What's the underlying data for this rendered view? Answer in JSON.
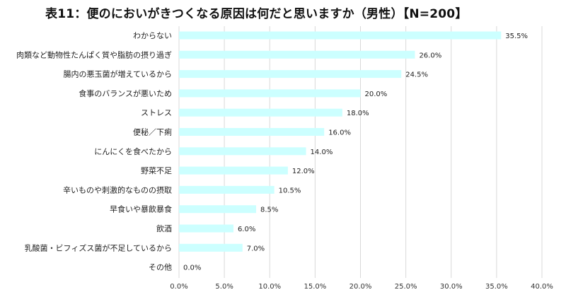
{
  "chart_data": {
    "type": "bar",
    "orientation": "horizontal",
    "title": "表11：便のにおいがきつくなる原因は何だと思いますか（男性）【N=200】",
    "categories": [
      "わからない",
      "肉類など動物性たんぱく質や脂肪の摂り過ぎ",
      "腸内の悪玉菌が増えているから",
      "食事のバランスが悪いため",
      "ストレス",
      "便秘／下痢",
      "にんにくを食べたから",
      "野菜不足",
      "辛いものや刺激的なものの摂取",
      "早食いや暴飲暴食",
      "飲酒",
      "乳酸菌・ビフィズス菌が不足しているから",
      "その他"
    ],
    "values": [
      35.5,
      26.0,
      24.5,
      20.0,
      18.0,
      16.0,
      14.0,
      12.0,
      10.5,
      8.5,
      6.0,
      7.0,
      0.0
    ],
    "value_labels": [
      "35.5%",
      "26.0%",
      "24.5%",
      "20.0%",
      "18.0%",
      "16.0%",
      "14.0%",
      "12.0%",
      "10.5%",
      "8.5%",
      "6.0%",
      "7.0%",
      "0.0%"
    ],
    "x_ticks": [
      "0.0%",
      "5.0%",
      "10.0%",
      "15.0%",
      "20.0%",
      "25.0%",
      "30.0%",
      "35.0%",
      "40.0%"
    ],
    "xlim": [
      0,
      40
    ],
    "xlabel": "",
    "ylabel": "",
    "grid": true,
    "legend": "none",
    "colors": {
      "bar": "#ccffff",
      "grid": "#d9d9d9"
    }
  }
}
